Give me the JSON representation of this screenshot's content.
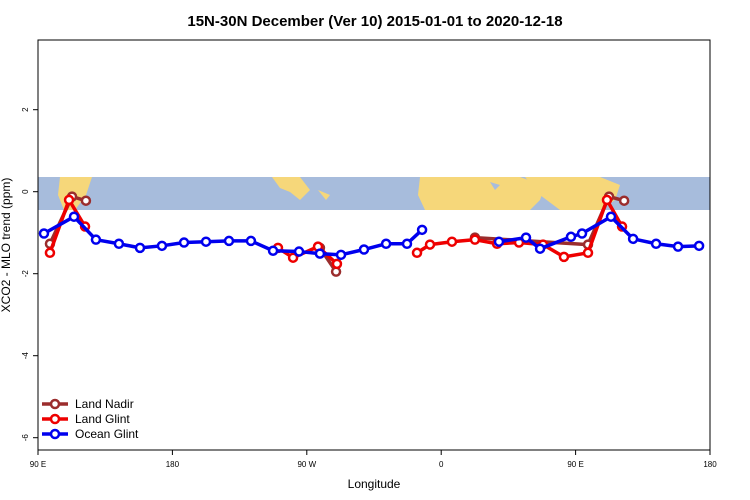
{
  "chart_data": {
    "type": "line",
    "title": "15N-30N December (Ver 10)   2015-01-01 to 2020-12-18",
    "x_label": "Longitude",
    "y_label": "XCO2 - MLO trend (ppm)",
    "xlim": [
      90,
      540
    ],
    "ylim": [
      -6.3,
      3.7
    ],
    "xticks": [
      {
        "value": 90,
        "label": "90 E"
      },
      180,
      {
        "value": 270,
        "label": "90 W"
      },
      {
        "value": 360,
        "label": "0"
      },
      {
        "value": 450,
        "label": "90 E"
      },
      {
        "value": 540,
        "label": "180"
      }
    ],
    "yticks": [
      -6,
      -4,
      -2,
      0,
      2
    ],
    "legend": "bottom-left",
    "series": [
      {
        "name": "Land Nadir",
        "color": "#9b2d2d",
        "x": [
          98.0,
          112.8,
          122.1,
          null,
          278.8,
          289.6,
          null,
          382.6,
          458.3,
          472.4,
          482.5
        ],
        "values": [
          -1.27,
          -0.12,
          -0.22,
          null,
          -1.37,
          -1.95,
          null,
          -1.12,
          -1.29,
          -0.12,
          -0.22
        ]
      },
      {
        "name": "Land Glint",
        "color": "#ee0000",
        "x": [
          98.0,
          110.8,
          121.5,
          null,
          250.7,
          260.8,
          277.5,
          290.2,
          null,
          343.8,
          352.5,
          367.2,
          382.6,
          397.4,
          412.1,
          428.2,
          442.2,
          458.3,
          471.0,
          481.1
        ],
        "values": [
          -1.49,
          -0.2,
          -0.85,
          null,
          -1.37,
          -1.61,
          -1.34,
          -1.76,
          null,
          -1.49,
          -1.29,
          -1.22,
          -1.17,
          -1.27,
          -1.24,
          -1.29,
          -1.59,
          -1.49,
          -0.2,
          -0.85
        ]
      },
      {
        "name": "Ocean Glint",
        "color": "#0000ee",
        "x": [
          94.0,
          114.1,
          128.8,
          144.2,
          158.3,
          173.0,
          187.8,
          202.5,
          217.9,
          232.6,
          247.4,
          264.8,
          278.8,
          292.9,
          308.3,
          323.1,
          337.1,
          347.2,
          null,
          398.7,
          416.8,
          426.2,
          446.9,
          454.3,
          473.7,
          488.5,
          503.9,
          518.6,
          532.7
        ],
        "values": [
          -1.02,
          -0.61,
          -1.17,
          -1.27,
          -1.37,
          -1.32,
          -1.24,
          -1.22,
          -1.2,
          -1.2,
          -1.44,
          -1.46,
          -1.51,
          -1.54,
          -1.41,
          -1.27,
          -1.27,
          -0.93,
          null,
          -1.22,
          -1.12,
          -1.39,
          -1.1,
          -1.02,
          -0.61,
          -1.15,
          -1.27,
          -1.34,
          -1.32
        ]
      }
    ]
  }
}
